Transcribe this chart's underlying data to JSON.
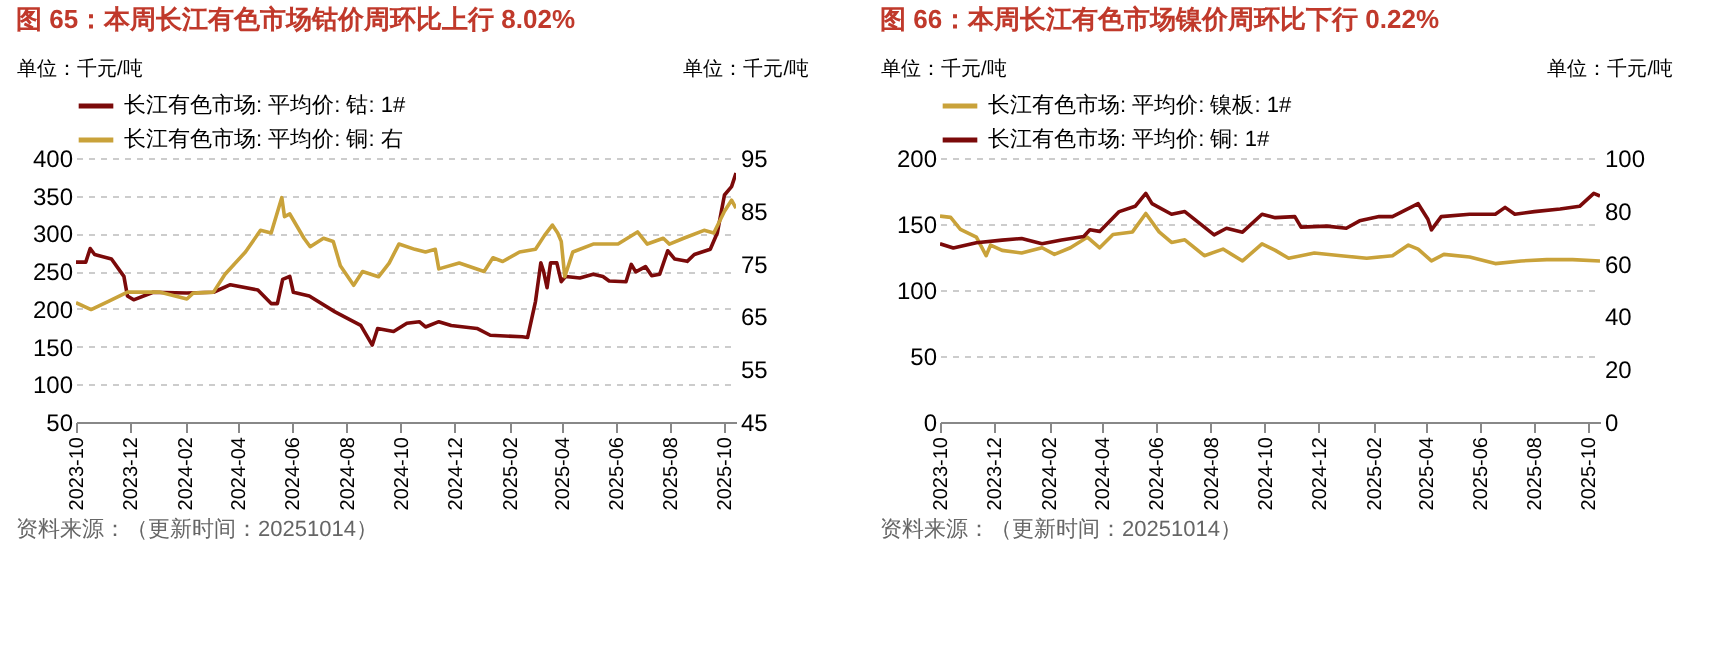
{
  "chart_data": [
    {
      "type": "line",
      "title": "图 65：本周长江有色市场钴价周环比上行 8.02%",
      "ylabel": "单位：千元/吨",
      "y2label": "单位：千元/吨",
      "annotations": [
        "资料来源：（更新时间：20251014）"
      ],
      "grid": "y",
      "legend": "top",
      "xlim": [
        "2023-10-01",
        "2025-10-14"
      ],
      "xticks": [
        "2023-10",
        "2023-12",
        "2024-02",
        "2024-04",
        "2024-06",
        "2024-08",
        "2024-10",
        "2024-12",
        "2025-02",
        "2025-04",
        "2025-06",
        "2025-08",
        "2025-10"
      ],
      "ylim": [
        50,
        400
      ],
      "yticks": [
        50,
        100,
        150,
        200,
        250,
        300,
        350,
        400
      ],
      "y2lim": [
        45,
        95
      ],
      "y2ticks": [
        45,
        55,
        65,
        75,
        85,
        95
      ],
      "series": [
        {
          "name": "长江有色市场: 平均价: 钴: 1#",
          "color": "#7b0a0a",
          "x": [
            "2023-10-01",
            "2023-10-12",
            "2023-10-17",
            "2023-10-22",
            "2023-11-10",
            "2023-11-24",
            "2023-11-28",
            "2023-12-05",
            "2023-12-27",
            "2024-02-03",
            "2024-03-04",
            "2024-03-23",
            "2024-04-23",
            "2024-05-08",
            "2024-05-15",
            "2024-05-21",
            "2024-05-29",
            "2024-06-02",
            "2024-06-20",
            "2024-07-19",
            "2024-08-17",
            "2024-08-30",
            "2024-09-05",
            "2024-09-23",
            "2024-10-08",
            "2024-10-22",
            "2024-10-29",
            "2024-11-13",
            "2024-11-27",
            "2024-12-26",
            "2025-01-10",
            "2025-02-15",
            "2025-02-21",
            "2025-03-02",
            "2025-03-08",
            "2025-03-11",
            "2025-03-15",
            "2025-03-19",
            "2025-03-26",
            "2025-03-31",
            "2025-04-05",
            "2025-04-21",
            "2025-05-06",
            "2025-05-17",
            "2025-05-24",
            "2025-06-12",
            "2025-06-18",
            "2025-06-23",
            "2025-07-04",
            "2025-07-11",
            "2025-07-20",
            "2025-07-29",
            "2025-08-06",
            "2025-08-20",
            "2025-08-28",
            "2025-09-15",
            "2025-09-23",
            "2025-10-01",
            "2025-10-09",
            "2025-10-14"
          ],
          "values": [
            262,
            262,
            280,
            272,
            266,
            243,
            217,
            212,
            222,
            221,
            222,
            232,
            225,
            207,
            207,
            239,
            243,
            222,
            217,
            196,
            178,
            152,
            174,
            170,
            181,
            183,
            176,
            183,
            178,
            174,
            165,
            163,
            162,
            210,
            261,
            250,
            228,
            261,
            261,
            236,
            243,
            241,
            246,
            243,
            237,
            236,
            259,
            249,
            256,
            244,
            246,
            277,
            266,
            263,
            272,
            279,
            301,
            351,
            362,
            380
          ]
        },
        {
          "name": "长江有色市场: 平均价: 铜:  右",
          "color": "#c9a23a",
          "axis": "y2",
          "x": [
            "2023-10-01",
            "2023-10-18",
            "2023-11-06",
            "2023-11-28",
            "2024-01-03",
            "2024-02-03",
            "2024-02-10",
            "2024-03-04",
            "2024-03-17",
            "2024-04-09",
            "2024-04-26",
            "2024-05-08",
            "2024-05-20",
            "2024-05-23",
            "2024-05-29",
            "2024-06-14",
            "2024-06-21",
            "2024-07-06",
            "2024-07-17",
            "2024-07-25",
            "2024-08-09",
            "2024-08-19",
            "2024-09-06",
            "2024-09-18",
            "2024-09-29",
            "2024-10-17",
            "2024-10-29",
            "2024-11-09",
            "2024-11-13",
            "2024-12-06",
            "2025-01-03",
            "2025-01-13",
            "2025-01-24",
            "2025-02-12",
            "2025-03-02",
            "2025-03-12",
            "2025-03-21",
            "2025-03-27",
            "2025-03-31",
            "2025-04-04",
            "2025-04-13",
            "2025-05-06",
            "2025-06-03",
            "2025-06-25",
            "2025-07-06",
            "2025-07-24",
            "2025-07-31",
            "2025-08-16",
            "2025-09-08",
            "2025-09-19",
            "2025-10-01",
            "2025-10-09",
            "2025-10-14"
          ],
          "values": [
            67.6,
            66.3,
            67.8,
            69.6,
            69.6,
            68.3,
            69.4,
            69.6,
            73.0,
            77.2,
            81.3,
            80.8,
            87.5,
            83.9,
            84.4,
            79.8,
            78.2,
            79.8,
            79.2,
            74.6,
            70.9,
            73.5,
            72.5,
            75.1,
            78.7,
            77.7,
            77.2,
            77.7,
            74.0,
            75.1,
            73.5,
            76.1,
            75.4,
            77.2,
            77.7,
            80.3,
            82.3,
            80.8,
            79.2,
            72.5,
            77.2,
            78.7,
            78.7,
            81.0,
            78.7,
            79.8,
            78.7,
            79.8,
            81.3,
            80.8,
            84.9,
            87.0,
            85.5
          ]
        }
      ]
    },
    {
      "type": "line",
      "title": "图 66：本周长江有色市场镍价周环比下行 0.22%",
      "ylabel": "单位：千元/吨",
      "y2label": "单位：千元/吨",
      "annotations": [
        "资料来源：（更新时间：20251014）"
      ],
      "grid": "y",
      "legend": "top",
      "xlim": [
        "2023-10-01",
        "2025-10-14"
      ],
      "xticks": [
        "2023-10",
        "2023-12",
        "2024-02",
        "2024-04",
        "2024-06",
        "2024-08",
        "2024-10",
        "2024-12",
        "2025-02",
        "2025-04",
        "2025-06",
        "2025-08",
        "2025-10"
      ],
      "ylim": [
        0,
        200
      ],
      "yticks": [
        0,
        50,
        100,
        150,
        200
      ],
      "y2lim": [
        0,
        100
      ],
      "y2ticks": [
        0,
        20,
        40,
        60,
        80,
        100
      ],
      "series": [
        {
          "name": "长江有色市场: 平均价: 镍板: 1#",
          "color": "#c9a23a",
          "x": [
            "2023-10-01",
            "2023-10-13",
            "2023-10-24",
            "2023-11-11",
            "2023-11-22",
            "2023-11-27",
            "2023-12-10",
            "2024-01-01",
            "2024-01-24",
            "2024-02-07",
            "2024-02-25",
            "2024-03-15",
            "2024-03-29",
            "2024-04-13",
            "2024-05-05",
            "2024-05-20",
            "2024-06-04",
            "2024-06-18",
            "2024-07-03",
            "2024-07-25",
            "2024-08-15",
            "2024-09-06",
            "2024-09-28",
            "2024-10-13",
            "2024-10-28",
            "2024-11-26",
            "2024-12-26",
            "2025-01-24",
            "2025-02-22",
            "2025-03-12",
            "2025-03-23",
            "2025-04-07",
            "2025-04-21",
            "2025-05-20",
            "2025-06-18",
            "2025-07-17",
            "2025-08-15",
            "2025-09-13",
            "2025-10-14"
          ],
          "values": [
            156,
            155,
            146,
            140,
            126,
            134,
            130,
            128,
            132,
            127,
            132,
            140,
            132,
            142,
            144,
            158,
            144,
            136,
            138,
            126,
            131,
            122,
            135,
            130,
            124,
            128,
            126,
            124,
            126,
            134,
            131,
            122,
            127,
            125,
            120,
            122,
            123,
            123,
            122
          ]
        },
        {
          "name": "长江有色市场: 平均价: 铜: 1#",
          "color": "#7b0a0a",
          "axis": "y2",
          "x": [
            "2023-10-01",
            "2023-10-16",
            "2023-11-11",
            "2023-12-10",
            "2024-01-01",
            "2024-01-24",
            "2024-02-15",
            "2024-03-11",
            "2024-03-18",
            "2024-03-29",
            "2024-04-20",
            "2024-05-08",
            "2024-05-20",
            "2024-05-27",
            "2024-06-18",
            "2024-07-03",
            "2024-07-25",
            "2024-08-05",
            "2024-08-19",
            "2024-09-06",
            "2024-09-28",
            "2024-10-13",
            "2024-11-04",
            "2024-11-11",
            "2024-12-10",
            "2025-01-01",
            "2025-01-16",
            "2025-02-07",
            "2025-02-22",
            "2025-03-23",
            "2025-04-03",
            "2025-04-07",
            "2025-04-18",
            "2025-05-20",
            "2025-06-18",
            "2025-06-29",
            "2025-07-10",
            "2025-08-01",
            "2025-08-30",
            "2025-09-21",
            "2025-10-07",
            "2025-10-14"
          ],
          "values": [
            67.5,
            65.9,
            67.9,
            68.9,
            69.5,
            67.5,
            68.9,
            70.3,
            72.8,
            72.2,
            79.7,
            81.7,
            86.6,
            82.7,
            78.7,
            79.7,
            73.8,
            70.9,
            73.4,
            71.9,
            78.7,
            77.4,
            77.8,
            73.8,
            74.2,
            73.4,
            76.2,
            77.8,
            77.8,
            82.7,
            76.8,
            72.8,
            77.8,
            78.7,
            78.7,
            81.3,
            78.7,
            79.7,
            80.7,
            81.7,
            86.6,
            85.6
          ]
        }
      ]
    }
  ]
}
